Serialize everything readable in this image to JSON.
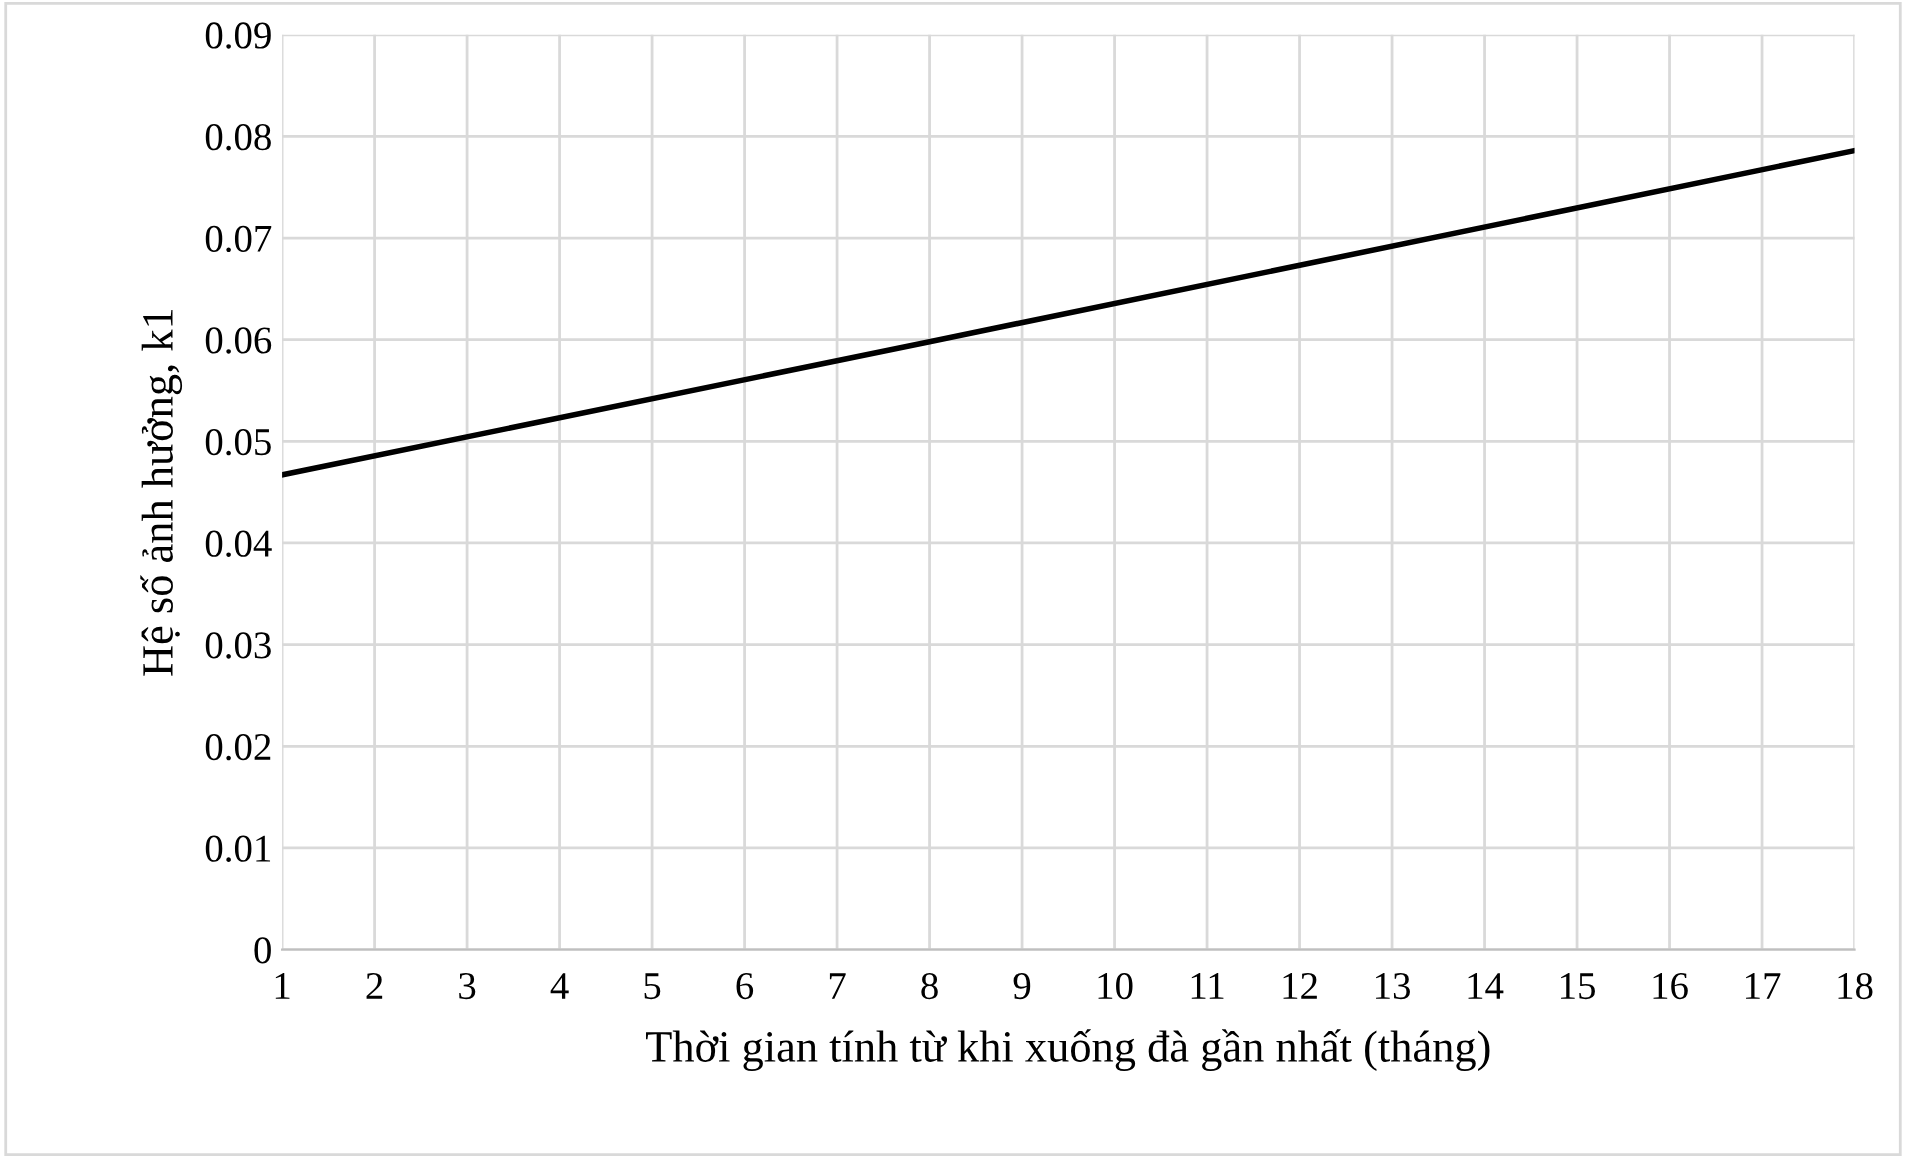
{
  "chart_data": {
    "type": "line",
    "xlabel": "Thời gian tính từ khi xuống đà gần nhất (tháng)",
    "ylabel": "Hệ số ảnh hưởng, k1",
    "x": [
      1,
      8,
      18
    ],
    "series": [
      {
        "color": "#000000",
        "values": [
          0.0467,
          0.0598,
          0.0786
        ]
      }
    ],
    "xlim": [
      1,
      18
    ],
    "xticks": [
      1,
      2,
      3,
      4,
      5,
      6,
      7,
      8,
      9,
      10,
      11,
      12,
      13,
      14,
      15,
      16,
      17,
      18
    ],
    "ylim": [
      0,
      0.09
    ],
    "yticks": [
      0,
      0.01,
      0.02,
      0.03,
      0.04,
      0.05,
      0.06,
      0.07,
      0.08,
      0.09
    ],
    "grid": true,
    "marker": "none",
    "line_style": "solid",
    "legend": false
  }
}
